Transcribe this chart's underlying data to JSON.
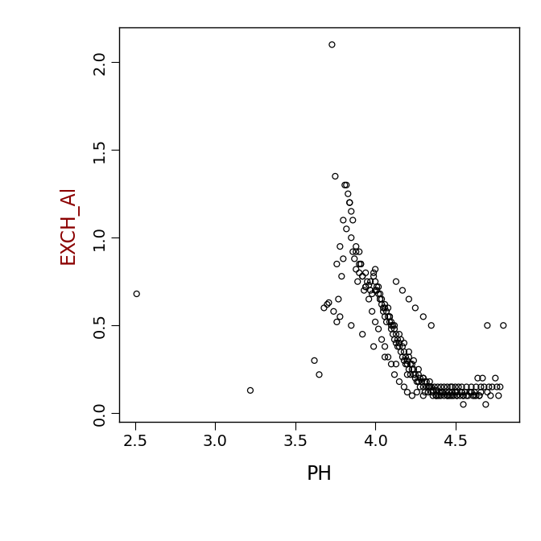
{
  "ph": [
    2.51,
    3.22,
    3.62,
    3.65,
    3.68,
    3.71,
    3.74,
    3.76,
    3.77,
    3.79,
    3.8,
    3.81,
    3.83,
    3.84,
    3.85,
    3.86,
    3.87,
    3.88,
    3.89,
    3.9,
    3.9,
    3.91,
    3.92,
    3.93,
    3.94,
    3.95,
    3.96,
    3.97,
    3.98,
    3.99,
    3.99,
    4.0,
    4.0,
    4.01,
    4.01,
    4.02,
    4.02,
    4.03,
    4.03,
    4.04,
    4.04,
    4.05,
    4.05,
    4.06,
    4.06,
    4.07,
    4.07,
    4.08,
    4.08,
    4.09,
    4.09,
    4.1,
    4.1,
    4.1,
    4.11,
    4.11,
    4.12,
    4.12,
    4.13,
    4.13,
    4.14,
    4.14,
    4.15,
    4.15,
    4.16,
    4.16,
    4.17,
    4.17,
    4.18,
    4.18,
    4.19,
    4.19,
    4.2,
    4.2,
    4.21,
    4.21,
    4.22,
    4.22,
    4.23,
    4.23,
    4.24,
    4.24,
    4.25,
    4.25,
    4.26,
    4.27,
    4.27,
    4.28,
    4.28,
    4.29,
    4.3,
    4.3,
    4.31,
    4.31,
    4.32,
    4.32,
    4.33,
    4.34,
    4.34,
    4.35,
    4.35,
    4.36,
    4.36,
    4.37,
    4.38,
    4.38,
    4.39,
    4.4,
    4.4,
    4.41,
    4.41,
    4.42,
    4.43,
    4.43,
    4.44,
    4.45,
    4.45,
    4.46,
    4.47,
    4.47,
    4.48,
    4.48,
    4.49,
    4.5,
    4.5,
    4.51,
    4.51,
    4.52,
    4.53,
    4.54,
    4.54,
    4.55,
    4.56,
    4.57,
    4.58,
    4.59,
    4.6,
    4.61,
    4.62,
    4.63,
    4.64,
    4.65,
    4.66,
    4.67,
    4.68,
    4.7,
    4.71,
    4.72,
    4.73,
    4.75,
    4.76,
    4.77,
    4.78,
    4.8,
    3.73,
    3.75,
    3.76,
    3.78,
    3.8,
    3.82,
    3.84,
    3.86,
    3.88,
    3.9,
    3.92,
    3.94,
    3.96,
    3.98,
    4.0,
    4.02,
    4.04,
    4.06,
    4.08,
    4.1,
    4.12,
    4.15,
    4.18,
    4.2,
    4.23,
    4.26,
    4.3,
    4.34,
    4.38,
    4.42,
    4.46,
    4.5,
    4.55,
    4.6,
    4.65,
    4.7,
    3.82,
    3.85,
    3.88,
    3.91,
    3.94,
    3.97,
    4.0,
    4.03,
    4.06,
    4.09,
    4.12,
    4.15,
    4.18,
    4.21,
    4.24,
    4.27,
    4.3,
    4.33,
    4.36,
    4.39,
    4.42,
    4.45,
    4.48,
    4.51,
    4.54,
    4.57,
    4.6,
    4.63,
    4.66,
    3.7,
    3.78,
    3.85,
    3.92,
    3.99,
    4.06,
    4.13,
    4.2,
    4.27,
    4.34,
    4.41,
    4.48,
    4.55,
    4.62,
    4.69,
    4.13,
    4.17,
    4.21,
    4.25,
    4.3,
    4.35
  ],
  "exch_al": [
    0.68,
    0.13,
    0.3,
    0.22,
    0.6,
    0.63,
    0.58,
    0.52,
    0.65,
    0.78,
    0.88,
    1.3,
    1.25,
    1.2,
    1.15,
    0.92,
    0.88,
    0.82,
    0.75,
    0.92,
    0.8,
    0.85,
    0.78,
    0.7,
    0.72,
    0.75,
    0.73,
    0.7,
    0.68,
    0.8,
    0.78,
    0.82,
    0.75,
    0.72,
    0.7,
    0.68,
    0.72,
    0.65,
    0.68,
    0.62,
    0.65,
    0.6,
    0.58,
    0.62,
    0.55,
    0.58,
    0.52,
    0.55,
    0.6,
    0.52,
    0.55,
    0.5,
    0.52,
    0.48,
    0.5,
    0.45,
    0.48,
    0.42,
    0.45,
    0.4,
    0.42,
    0.38,
    0.4,
    0.38,
    0.42,
    0.35,
    0.38,
    0.32,
    0.35,
    0.3,
    0.32,
    0.28,
    0.3,
    0.28,
    0.32,
    0.25,
    0.28,
    0.22,
    0.25,
    0.28,
    0.22,
    0.25,
    0.2,
    0.22,
    0.18,
    0.22,
    0.18,
    0.2,
    0.15,
    0.18,
    0.2,
    0.15,
    0.18,
    0.12,
    0.15,
    0.18,
    0.12,
    0.15,
    0.18,
    0.12,
    0.15,
    0.1,
    0.13,
    0.15,
    0.1,
    0.13,
    0.15,
    0.1,
    0.12,
    0.15,
    0.1,
    0.12,
    0.15,
    0.1,
    0.12,
    0.15,
    0.1,
    0.12,
    0.15,
    0.1,
    0.12,
    0.15,
    0.1,
    0.12,
    0.15,
    0.1,
    0.12,
    0.15,
    0.1,
    0.12,
    0.15,
    0.1,
    0.12,
    0.15,
    0.1,
    0.12,
    0.15,
    0.1,
    0.12,
    0.15,
    0.2,
    0.1,
    0.15,
    0.2,
    0.15,
    0.5,
    0.15,
    0.1,
    0.15,
    0.2,
    0.15,
    0.1,
    0.15,
    0.5,
    2.1,
    1.35,
    0.85,
    0.95,
    1.1,
    1.3,
    1.2,
    1.1,
    0.95,
    0.85,
    0.78,
    0.72,
    0.65,
    0.58,
    0.52,
    0.48,
    0.42,
    0.38,
    0.32,
    0.28,
    0.22,
    0.18,
    0.15,
    0.12,
    0.1,
    0.12,
    0.1,
    0.15,
    0.1,
    0.12,
    0.1,
    0.12,
    0.1,
    0.12,
    0.1,
    0.12,
    1.05,
    1.0,
    0.92,
    0.85,
    0.8,
    0.75,
    0.7,
    0.65,
    0.6,
    0.55,
    0.5,
    0.45,
    0.4,
    0.35,
    0.3,
    0.25,
    0.2,
    0.15,
    0.12,
    0.1,
    0.12,
    0.1,
    0.12,
    0.1,
    0.12,
    0.1,
    0.12,
    0.1,
    0.12,
    0.62,
    0.55,
    0.5,
    0.45,
    0.38,
    0.32,
    0.28,
    0.22,
    0.18,
    0.15,
    0.12,
    0.1,
    0.05,
    0.1,
    0.05,
    0.75,
    0.7,
    0.65,
    0.6,
    0.55,
    0.5
  ],
  "xlim": [
    2.4,
    4.9
  ],
  "ylim": [
    -0.05,
    2.2
  ],
  "xticks": [
    2.5,
    3.0,
    3.5,
    4.0,
    4.5
  ],
  "yticks": [
    0.0,
    0.5,
    1.0,
    1.5,
    2.0
  ],
  "xlabel": "PH",
  "ylabel": "EXCH_Al",
  "marker_size": 5,
  "marker_facecolor": "none",
  "marker_edgecolor": "#000000",
  "marker_linewidth": 0.9,
  "background_color": "#ffffff",
  "ylabel_color": "#8B0000",
  "xlabel_color": "#000000",
  "font_size_label": 17,
  "font_size_tick": 14
}
